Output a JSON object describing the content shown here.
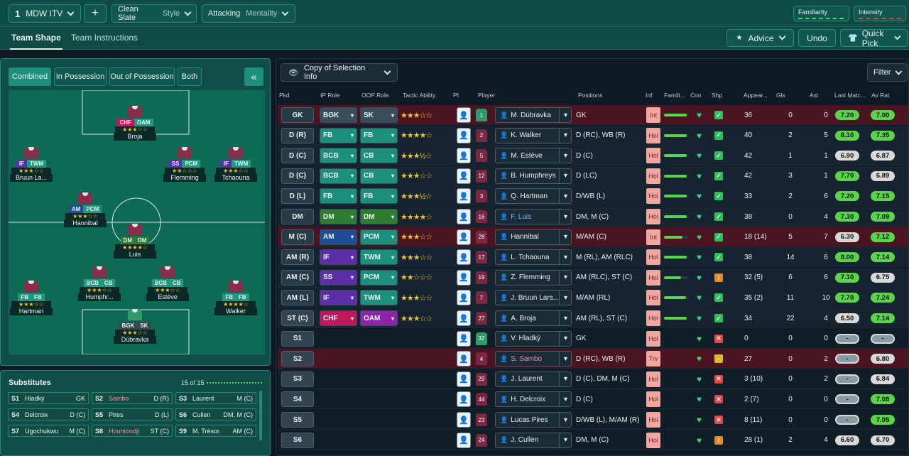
{
  "topbar": {
    "tactic_num": "1",
    "tactic_name": "MDW ITV",
    "plus": "+",
    "style_value": "Clean Slate",
    "style_label": "Style",
    "mentality_value": "Attacking",
    "mentality_label": "Mentality",
    "familiarity_label": "Familiarity",
    "intensity_label": "Intensity"
  },
  "subbar": {
    "tab1": "Team Shape",
    "tab2": "Team Instructions",
    "advice": "Advice",
    "undo": "Undo",
    "quick_pick": "Quick Pick"
  },
  "view_tabs": [
    "Combined",
    "In Possession",
    "Out of Possession",
    "Both"
  ],
  "collapse_icon": "«",
  "pitch_players": [
    {
      "name": "Broja",
      "r1": "CHF",
      "r2": "OAM",
      "stars": "★★★☆☆",
      "c1": "#c2185b",
      "c2": "#1f9a80"
    },
    {
      "name": "Bruun La...",
      "r1": "IF",
      "r2": "TWM",
      "stars": "★★★☆☆",
      "c1": "#5b2fa6",
      "c2": "#1f9a80"
    },
    {
      "name": "Flemming",
      "r1": "SS",
      "r2": "PCM",
      "stars": "★★☆☆☆",
      "c1": "#5b2fa6",
      "c2": "#1f9a80"
    },
    {
      "name": "Tchaouna",
      "r1": "IF",
      "r2": "TWM",
      "stars": "★★★☆☆",
      "c1": "#5b2fa6",
      "c2": "#1f9a80"
    },
    {
      "name": "Hannibal",
      "r1": "AM",
      "r2": "PCM",
      "stars": "★★★☆☆",
      "c1": "#1f4d9a",
      "c2": "#1f9a80"
    },
    {
      "name": "Luis",
      "r1": "DM",
      "r2": "DM",
      "stars": "★★★★☆",
      "c1": "#2e7d32",
      "c2": "#2e7d32"
    },
    {
      "name": "Hartman",
      "r1": "FB",
      "r2": "FB",
      "stars": "★★★☆☆",
      "c1": "#1f9a80",
      "c2": "#1f9a80"
    },
    {
      "name": "Humphr...",
      "r1": "BCB",
      "r2": "CB",
      "stars": "★★★☆☆",
      "c1": "#1f9a80",
      "c2": "#1f9a80"
    },
    {
      "name": "Estève",
      "r1": "BCB",
      "r2": "CB",
      "stars": "★★★☆☆",
      "c1": "#1f9a80",
      "c2": "#1f9a80"
    },
    {
      "name": "Walker",
      "r1": "FB",
      "r2": "FB",
      "stars": "★★★★☆",
      "c1": "#1f9a80",
      "c2": "#1f9a80"
    },
    {
      "name": "Dúbravka",
      "r1": "BGK",
      "r2": "SK",
      "stars": "★★★☆☆",
      "c1": "#37474f",
      "c2": "#37474f"
    }
  ],
  "subs": {
    "title": "Substitutes",
    "count": "15 of 15",
    "items": [
      {
        "pos": "S1",
        "name": "Hladký",
        "role": "GK"
      },
      {
        "pos": "S2",
        "name": "Sambo",
        "role": "D (R)"
      },
      {
        "pos": "S3",
        "name": "Laurent",
        "role": "M (C)"
      },
      {
        "pos": "S4",
        "name": "Delcroix",
        "role": "D (C)"
      },
      {
        "pos": "S5",
        "name": "Pires",
        "role": "D (L)"
      },
      {
        "pos": "S6",
        "name": "Cullen",
        "role": "DM, M (C)"
      },
      {
        "pos": "S7",
        "name": "Ugochukwu",
        "role": "M (C)"
      },
      {
        "pos": "S8",
        "name": "Hountondji",
        "role": "ST (C)"
      },
      {
        "pos": "S9",
        "name": "M. Trésor",
        "role": "AM (C)"
      }
    ]
  },
  "table": {
    "copy_label": "Copy of Selection Info",
    "filter_label": "Filter",
    "headers": [
      "Pkd",
      "IP Role",
      "OOP Role",
      "Tactic Ability",
      "PI",
      "Player",
      "Positions",
      "Inf",
      "Famili...",
      "Con",
      "Shp",
      "Appear...",
      "Gls",
      "Ast",
      "Last Matc...",
      "Av Rat"
    ],
    "rows": [
      {
        "pos": "GK",
        "ip": "BGK",
        "oop": "SK",
        "stars": "★★★☆☆",
        "num": "1",
        "player": "M. Dúbravka",
        "positions": "GK",
        "inf": "Int",
        "fam": 0.95,
        "shp": "✓",
        "app": "36",
        "gls": "0",
        "ast": "0",
        "last": "7.20",
        "avg": "7.00",
        "ipc": "#3a4d5a",
        "oopc": "#3a4d5a",
        "rowbg": "#4a1520",
        "shpc": "#2fbf5a",
        "lastc": "#5ad44a",
        "avgc": "#5ad44a"
      },
      {
        "pos": "D (R)",
        "ip": "FB",
        "oop": "FB",
        "stars": "★★★★☆",
        "num": "2",
        "player": "K. Walker",
        "positions": "D (RC), WB (R)",
        "inf": "Hol",
        "fam": 0.95,
        "shp": "✓",
        "app": "40",
        "gls": "2",
        "ast": "5",
        "last": "8.10",
        "avg": "7.35",
        "ipc": "#1c8f7e",
        "oopc": "#1c8f7e",
        "rowbg": "#152430",
        "shpc": "#2fbf5a",
        "lastc": "#5ad44a",
        "avgc": "#5ad44a"
      },
      {
        "pos": "D (C)",
        "ip": "BCB",
        "oop": "CB",
        "stars": "★★★½☆",
        "num": "5",
        "player": "M. Estève",
        "positions": "D (C)",
        "inf": "Hol",
        "fam": 0.95,
        "shp": "✓",
        "app": "42",
        "gls": "1",
        "ast": "1",
        "last": "6.90",
        "avg": "6.87",
        "ipc": "#1c8f7e",
        "oopc": "#1c8f7e",
        "rowbg": "#152430",
        "shpc": "#2fbf5a",
        "lastc": "#d9d9d9",
        "avgc": "#d9d9d9"
      },
      {
        "pos": "D (C)",
        "ip": "BCB",
        "oop": "CB",
        "stars": "★★★☆☆",
        "num": "12",
        "player": "B. Humphreys",
        "positions": "D (LC)",
        "inf": "Hol",
        "fam": 0.95,
        "shp": "✓",
        "app": "42",
        "gls": "3",
        "ast": "1",
        "last": "7.70",
        "avg": "6.89",
        "ipc": "#1c8f7e",
        "oopc": "#1c8f7e",
        "rowbg": "#152430",
        "shpc": "#2fbf5a",
        "lastc": "#5ad44a",
        "avgc": "#d9d9d9"
      },
      {
        "pos": "D (L)",
        "ip": "FB",
        "oop": "FB",
        "stars": "★★★½☆",
        "num": "3",
        "player": "Q. Hartman",
        "positions": "D/WB (L)",
        "inf": "Hol",
        "fam": 0.95,
        "shp": "✓",
        "app": "33",
        "gls": "2",
        "ast": "6",
        "last": "7.20",
        "avg": "7.15",
        "ipc": "#1c8f7e",
        "oopc": "#1c8f7e",
        "rowbg": "#152430",
        "shpc": "#2fbf5a",
        "lastc": "#5ad44a",
        "avgc": "#5ad44a"
      },
      {
        "pos": "DM",
        "ip": "DM",
        "oop": "DM",
        "stars": "★★★★☆",
        "num": "16",
        "player": "F. Luis",
        "positions": "DM, M (C)",
        "inf": "Hol",
        "fam": 0.95,
        "shp": "✓",
        "app": "38",
        "gls": "0",
        "ast": "4",
        "last": "7.30",
        "avg": "7.09",
        "ipc": "#2e7d32",
        "oopc": "#2e7d32",
        "rowbg": "#152430",
        "shpc": "#2fbf5a",
        "lastc": "#5ad44a",
        "avgc": "#5ad44a"
      },
      {
        "pos": "M (C)",
        "ip": "AM",
        "oop": "PCM",
        "stars": "★★★☆☆",
        "num": "28",
        "player": "Hannibal",
        "positions": "M/AM (C)",
        "inf": "Int",
        "fam": 0.75,
        "shp": "✓",
        "app": "18 (14)",
        "gls": "5",
        "ast": "7",
        "last": "6.30",
        "avg": "7.12",
        "ipc": "#1f4d9a",
        "oopc": "#1c8f7e",
        "rowbg": "#4a1520",
        "shpc": "#2fbf5a",
        "lastc": "#d9d9d9",
        "avgc": "#5ad44a"
      },
      {
        "pos": "AM (R)",
        "ip": "IF",
        "oop": "TWM",
        "stars": "★★★☆☆",
        "num": "17",
        "player": "L. Tchaouna",
        "positions": "M (RL), AM (RLC)",
        "inf": "Hol",
        "fam": 0.95,
        "shp": "✓",
        "app": "38",
        "gls": "14",
        "ast": "6",
        "last": "8.00",
        "avg": "7.14",
        "ipc": "#5b2fa6",
        "oopc": "#1c8f7e",
        "rowbg": "#152430",
        "shpc": "#2fbf5a",
        "lastc": "#5ad44a",
        "avgc": "#5ad44a"
      },
      {
        "pos": "AM (C)",
        "ip": "SS",
        "oop": "PCM",
        "stars": "★★☆☆☆",
        "num": "19",
        "player": "Z. Flemming",
        "positions": "AM (RLC), ST (C)",
        "inf": "Hol",
        "fam": 0.7,
        "shp": "!",
        "app": "32 (5)",
        "gls": "6",
        "ast": "6",
        "last": "7.10",
        "avg": "6.75",
        "ipc": "#5b2fa6",
        "oopc": "#1c8f7e",
        "rowbg": "#152430",
        "shpc": "#e08a2a",
        "lastc": "#5ad44a",
        "avgc": "#d9d9d9"
      },
      {
        "pos": "AM (L)",
        "ip": "IF",
        "oop": "TWM",
        "stars": "★★★☆☆",
        "num": "7",
        "player": "J. Bruun Lars...",
        "positions": "M/AM (RL)",
        "inf": "Hol",
        "fam": 0.9,
        "shp": "✓",
        "app": "35 (2)",
        "gls": "11",
        "ast": "10",
        "last": "7.70",
        "avg": "7.24",
        "ipc": "#5b2fa6",
        "oopc": "#1c8f7e",
        "rowbg": "#152430",
        "shpc": "#2fbf5a",
        "lastc": "#5ad44a",
        "avgc": "#5ad44a"
      },
      {
        "pos": "ST (C)",
        "ip": "CHF",
        "oop": "OAM",
        "stars": "★★★☆☆",
        "num": "27",
        "player": "A. Broja",
        "positions": "AM (RL), ST (C)",
        "inf": "Hol",
        "fam": 0.95,
        "shp": "✓",
        "app": "34",
        "gls": "22",
        "ast": "4",
        "last": "6.50",
        "avg": "7.14",
        "ipc": "#c2185b",
        "oopc": "#8e24aa",
        "rowbg": "#152430",
        "shpc": "#2fbf5a",
        "lastc": "#d9d9d9",
        "avgc": "#5ad44a"
      },
      {
        "pos": "S1",
        "ip": "",
        "oop": "",
        "stars": "",
        "num": "32",
        "player": "V. Hladký",
        "positions": "GK",
        "inf": "Hol",
        "fam": 0,
        "shp": "✕",
        "app": "0",
        "gls": "0",
        "ast": "0",
        "last": "-",
        "avg": "-",
        "ipc": "",
        "oopc": "",
        "rowbg": "#101e28",
        "shpc": "#e04848",
        "lastc": "#d9d9d9",
        "avgc": "#d9d9d9"
      },
      {
        "pos": "S2",
        "ip": "",
        "oop": "",
        "stars": "",
        "num": "4",
        "player": "S. Sambo",
        "positions": "D (RC), WB (R)",
        "inf": "Trv",
        "fam": 0,
        "shp": "–",
        "app": "27",
        "gls": "0",
        "ast": "2",
        "last": "-",
        "avg": "6.80",
        "ipc": "",
        "oopc": "",
        "rowbg": "#4a1520",
        "shpc": "#e0b62a",
        "lastc": "#d9d9d9",
        "avgc": "#d9d9d9"
      },
      {
        "pos": "S3",
        "ip": "",
        "oop": "",
        "stars": "",
        "num": "29",
        "player": "J. Laurent",
        "positions": "D (C), DM, M (C)",
        "inf": "Hol",
        "fam": 0,
        "shp": "✕",
        "app": "3 (10)",
        "gls": "0",
        "ast": "2",
        "last": "-",
        "avg": "6.84",
        "ipc": "",
        "oopc": "",
        "rowbg": "#101e28",
        "shpc": "#e04848",
        "lastc": "#d9d9d9",
        "avgc": "#d9d9d9"
      },
      {
        "pos": "S4",
        "ip": "",
        "oop": "",
        "stars": "",
        "num": "44",
        "player": "H. Delcroix",
        "positions": "D (C)",
        "inf": "Hol",
        "fam": 0,
        "shp": "✕",
        "app": "2 (7)",
        "gls": "0",
        "ast": "0",
        "last": "-",
        "avg": "7.08",
        "ipc": "",
        "oopc": "",
        "rowbg": "#101e28",
        "shpc": "#e04848",
        "lastc": "#d9d9d9",
        "avgc": "#5ad44a"
      },
      {
        "pos": "S5",
        "ip": "",
        "oop": "",
        "stars": "",
        "num": "23",
        "player": "Lucas Pires",
        "positions": "D/WB (L), M/AM (R)",
        "inf": "Hol",
        "fam": 0,
        "shp": "✕",
        "app": "8 (11)",
        "gls": "0",
        "ast": "0",
        "last": "-",
        "avg": "7.05",
        "ipc": "",
        "oopc": "",
        "rowbg": "#101e28",
        "shpc": "#e04848",
        "lastc": "#d9d9d9",
        "avgc": "#5ad44a"
      },
      {
        "pos": "S6",
        "ip": "",
        "oop": "",
        "stars": "",
        "num": "24",
        "player": "J. Cullen",
        "positions": "DM, M (C)",
        "inf": "Hol",
        "fam": 0,
        "shp": "!",
        "app": "28 (1)",
        "gls": "2",
        "ast": "4",
        "last": "6.60",
        "avg": "6.70",
        "ipc": "",
        "oopc": "",
        "rowbg": "#101e28",
        "shpc": "#e08a2a",
        "lastc": "#d9d9d9",
        "avgc": "#d9d9d9"
      }
    ]
  }
}
